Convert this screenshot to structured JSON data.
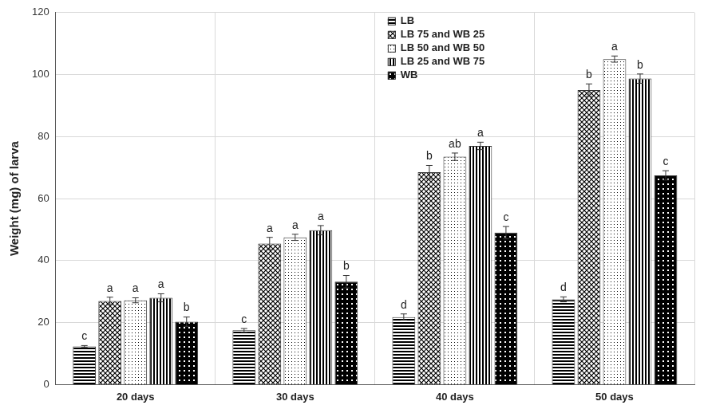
{
  "chart_data": {
    "type": "bar",
    "y_label": "Weight (mg) of larva",
    "categories": [
      "20 days",
      "30 days",
      "40 days",
      "50 days"
    ],
    "series": [
      {
        "name": "LB",
        "color": "#000000",
        "values": [
          12.3,
          17.5,
          21.8,
          27.5
        ],
        "errors": [
          0.3,
          0.6,
          1.0,
          0.8
        ],
        "letters": [
          "c",
          "c",
          "d",
          "d"
        ]
      },
      {
        "name": "LB 75 and WB 25",
        "color": "#000000",
        "values": [
          27.0,
          45.5,
          68.5,
          95.0
        ],
        "errors": [
          1.2,
          2.0,
          2.2,
          2.0
        ],
        "letters": [
          "a",
          "a",
          "b",
          "b"
        ]
      },
      {
        "name": "LB 50 and WB 50",
        "color": "#000000",
        "values": [
          27.2,
          47.5,
          73.5,
          105.0
        ],
        "errors": [
          0.8,
          1.0,
          1.2,
          1.0
        ],
        "letters": [
          "a",
          "a",
          "ab",
          "a"
        ]
      },
      {
        "name": "LB 25 and WB 75",
        "color": "#000000",
        "values": [
          28.0,
          49.8,
          77.0,
          98.7
        ],
        "errors": [
          1.3,
          1.5,
          1.2,
          1.5
        ],
        "letters": [
          "a",
          "a",
          "a",
          "b"
        ]
      },
      {
        "name": "WB",
        "color": "#000000",
        "values": [
          20.3,
          33.2,
          49.0,
          67.5
        ],
        "errors": [
          1.5,
          2.0,
          2.0,
          1.5
        ],
        "letters": [
          "b",
          "b",
          "c",
          "c"
        ]
      }
    ],
    "ylim": [
      0,
      120
    ],
    "yticks": [
      0,
      20,
      40,
      60,
      80,
      100,
      120
    ],
    "grid": true,
    "legend": "top",
    "data_labels": false
  }
}
